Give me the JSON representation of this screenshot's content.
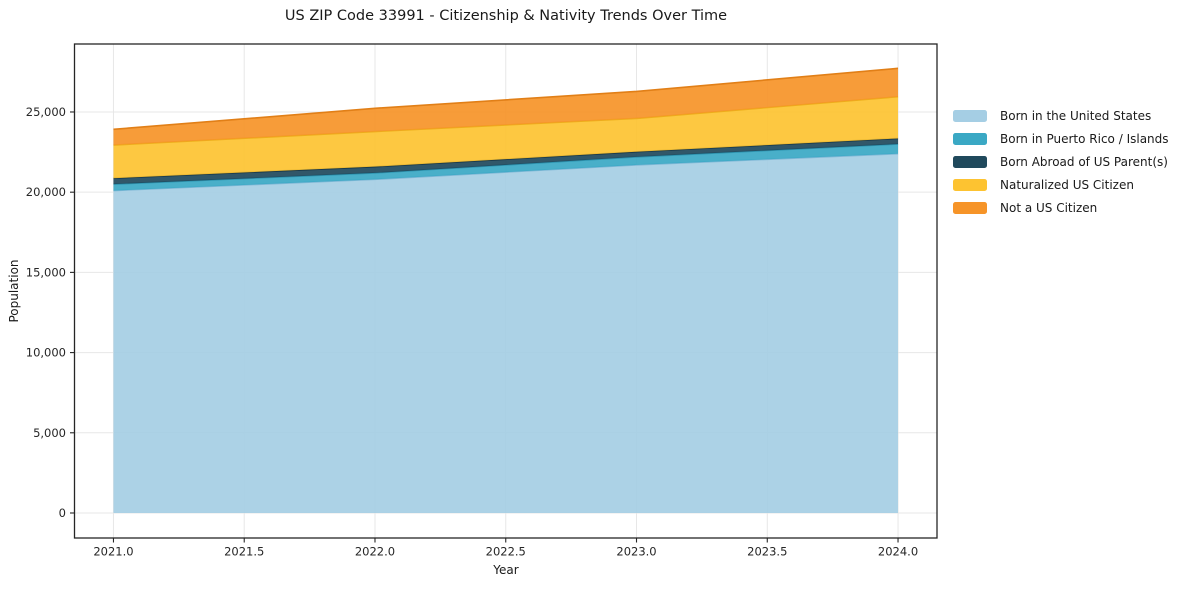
{
  "chart_data": {
    "type": "area",
    "stacked": true,
    "title": "US ZIP Code 33991 - Citizenship & Nativity Trends Over Time",
    "xlabel": "Year",
    "ylabel": "Population",
    "x": [
      2021,
      2022,
      2023,
      2024
    ],
    "series": [
      {
        "name": "Born in the United States",
        "color": "#a5cee4",
        "edge_color": "#7fb8d6",
        "values": [
          20100,
          20800,
          21700,
          22400
        ]
      },
      {
        "name": "Born in Puerto Rico / Islands",
        "color": "#3aa8c4",
        "edge_color": "#2e94b0",
        "values": [
          400,
          400,
          500,
          600
        ]
      },
      {
        "name": "Born Abroad of US Parent(s)",
        "color": "#20495c",
        "edge_color": "#173749",
        "values": [
          370,
          390,
          320,
          350
        ]
      },
      {
        "name": "Naturalized US Citizen",
        "color": "#fdc331",
        "edge_color": "#edae1b",
        "values": [
          2070,
          2190,
          2080,
          2600
        ]
      },
      {
        "name": "Not a US Citizen",
        "color": "#f69428",
        "edge_color": "#e17f17",
        "values": [
          980,
          1450,
          1680,
          1770
        ]
      }
    ],
    "x_ticks": [
      {
        "v": 2021.0,
        "label": "2021.0"
      },
      {
        "v": 2021.5,
        "label": "2021.5"
      },
      {
        "v": 2022.0,
        "label": "2022.0"
      },
      {
        "v": 2022.5,
        "label": "2022.5"
      },
      {
        "v": 2023.0,
        "label": "2023.0"
      },
      {
        "v": 2023.5,
        "label": "2023.5"
      },
      {
        "v": 2024.0,
        "label": "2024.0"
      }
    ],
    "y_ticks": [
      {
        "v": 0,
        "label": "0"
      },
      {
        "v": 5000,
        "label": "5,000"
      },
      {
        "v": 10000,
        "label": "10,000"
      },
      {
        "v": 15000,
        "label": "15,000"
      },
      {
        "v": 20000,
        "label": "20,000"
      },
      {
        "v": 25000,
        "label": "25,000"
      }
    ],
    "xlim": [
      2020.851,
      2024.149
    ],
    "ylim": [
      -1559,
      29238
    ],
    "grid": true,
    "fill_opacity": 0.92,
    "legend_position": "right of plot"
  }
}
